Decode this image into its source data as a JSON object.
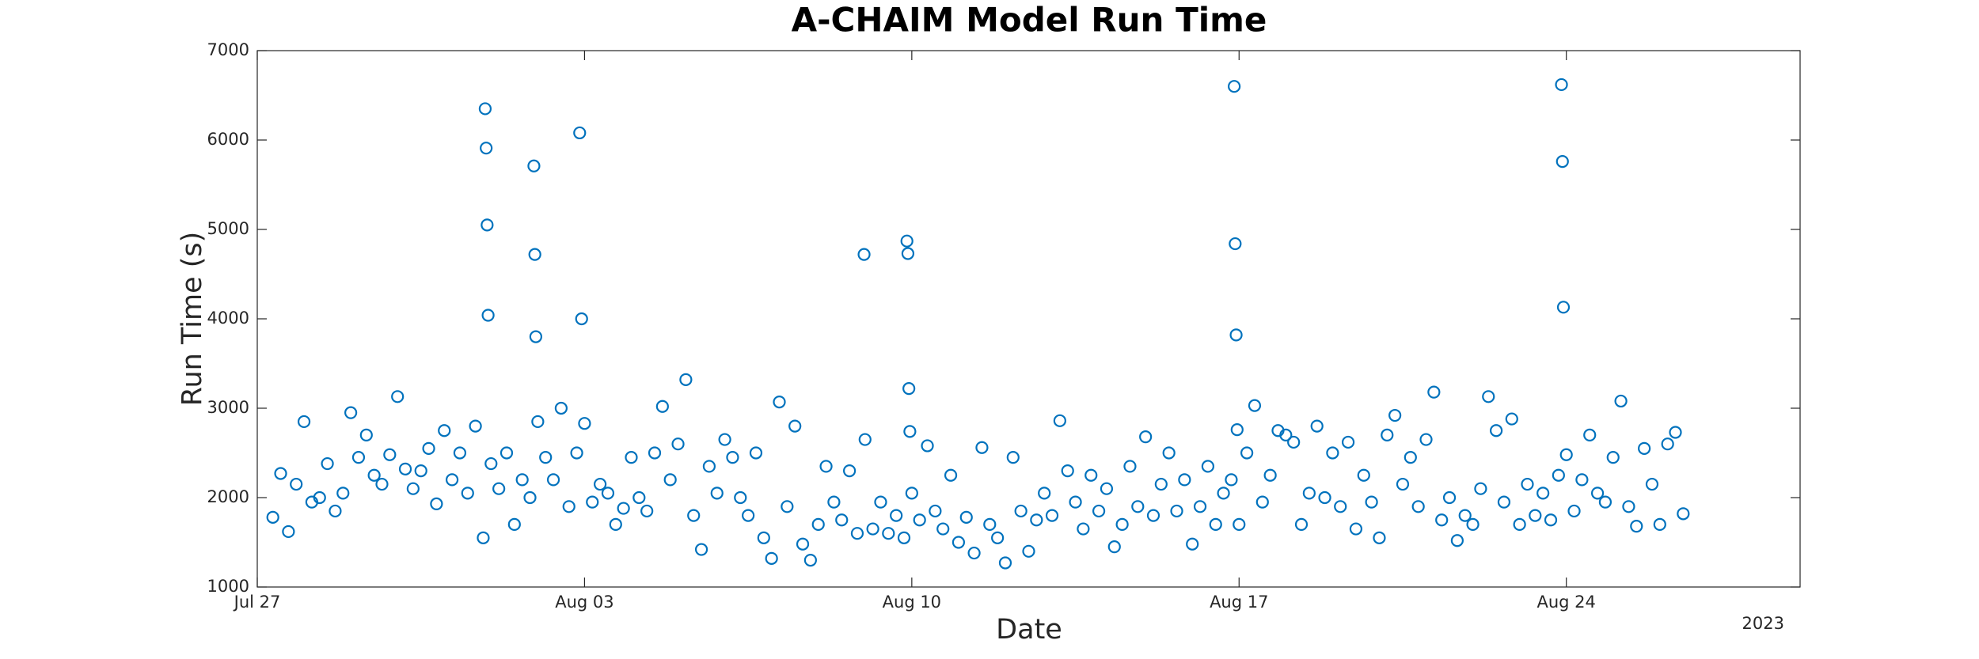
{
  "chart_data": {
    "type": "scatter",
    "title": "A-CHAIM Model Run Time",
    "x_label": "Date",
    "y_label": "Run Time (s)",
    "year_label": "2023",
    "color": "#0072BD",
    "marker": "circle",
    "xlim": [
      "2023-07-27",
      "2023-08-29"
    ],
    "xticks": [
      {
        "value": "2023-07-27",
        "label": "Jul 27"
      },
      {
        "value": "2023-08-03",
        "label": "Aug 03"
      },
      {
        "value": "2023-08-10",
        "label": "Aug 10"
      },
      {
        "value": "2023-08-17",
        "label": "Aug 17"
      },
      {
        "value": "2023-08-24",
        "label": "Aug 24"
      }
    ],
    "ylim": [
      1000,
      7000
    ],
    "yticks": [
      1000,
      2000,
      3000,
      4000,
      5000,
      6000,
      7000
    ],
    "x": [
      "2023-07-27T08:00",
      "2023-07-27T12:00",
      "2023-07-27T16:00",
      "2023-07-27T20:00",
      "2023-07-28T00:00",
      "2023-07-28T04:00",
      "2023-07-28T08:00",
      "2023-07-28T12:00",
      "2023-07-28T16:00",
      "2023-07-28T20:00",
      "2023-07-29T00:00",
      "2023-07-29T04:00",
      "2023-07-29T08:00",
      "2023-07-29T12:00",
      "2023-07-29T16:00",
      "2023-07-29T20:00",
      "2023-07-30T00:00",
      "2023-07-30T04:00",
      "2023-07-30T08:00",
      "2023-07-30T12:00",
      "2023-07-30T16:00",
      "2023-07-30T20:00",
      "2023-07-31T00:00",
      "2023-07-31T04:00",
      "2023-07-31T08:00",
      "2023-07-31T12:00",
      "2023-07-31T16:00",
      "2023-07-31T20:00",
      "2023-07-31T21:00",
      "2023-07-31T21:30",
      "2023-07-31T22:00",
      "2023-07-31T22:30",
      "2023-08-01T00:00",
      "2023-08-01T04:00",
      "2023-08-01T08:00",
      "2023-08-01T12:00",
      "2023-08-01T16:00",
      "2023-08-01T20:00",
      "2023-08-01T22:00",
      "2023-08-01T22:30",
      "2023-08-01T23:00",
      "2023-08-02T00:00",
      "2023-08-02T04:00",
      "2023-08-02T08:00",
      "2023-08-02T12:00",
      "2023-08-02T16:00",
      "2023-08-02T20:00",
      "2023-08-02T21:30",
      "2023-08-02T22:30",
      "2023-08-03T00:00",
      "2023-08-03T04:00",
      "2023-08-03T08:00",
      "2023-08-03T12:00",
      "2023-08-03T16:00",
      "2023-08-03T20:00",
      "2023-08-04T00:00",
      "2023-08-04T04:00",
      "2023-08-04T08:00",
      "2023-08-04T12:00",
      "2023-08-04T16:00",
      "2023-08-04T20:00",
      "2023-08-05T00:00",
      "2023-08-05T04:00",
      "2023-08-05T08:00",
      "2023-08-05T12:00",
      "2023-08-05T16:00",
      "2023-08-05T20:00",
      "2023-08-06T00:00",
      "2023-08-06T04:00",
      "2023-08-06T08:00",
      "2023-08-06T12:00",
      "2023-08-06T16:00",
      "2023-08-06T20:00",
      "2023-08-07T00:00",
      "2023-08-07T04:00",
      "2023-08-07T08:00",
      "2023-08-07T12:00",
      "2023-08-07T16:00",
      "2023-08-07T20:00",
      "2023-08-08T00:00",
      "2023-08-08T04:00",
      "2023-08-08T08:00",
      "2023-08-08T12:00",
      "2023-08-08T16:00",
      "2023-08-08T20:00",
      "2023-08-08T23:30",
      "2023-08-09T00:00",
      "2023-08-09T04:00",
      "2023-08-09T08:00",
      "2023-08-09T12:00",
      "2023-08-09T16:00",
      "2023-08-09T20:00",
      "2023-08-09T21:30",
      "2023-08-09T22:00",
      "2023-08-09T22:30",
      "2023-08-09T23:00",
      "2023-08-10T00:00",
      "2023-08-10T04:00",
      "2023-08-10T08:00",
      "2023-08-10T12:00",
      "2023-08-10T16:00",
      "2023-08-10T20:00",
      "2023-08-11T00:00",
      "2023-08-11T04:00",
      "2023-08-11T08:00",
      "2023-08-11T12:00",
      "2023-08-11T16:00",
      "2023-08-11T20:00",
      "2023-08-12T00:00",
      "2023-08-12T04:00",
      "2023-08-12T08:00",
      "2023-08-12T12:00",
      "2023-08-12T16:00",
      "2023-08-12T20:00",
      "2023-08-13T00:00",
      "2023-08-13T04:00",
      "2023-08-13T08:00",
      "2023-08-13T12:00",
      "2023-08-13T16:00",
      "2023-08-13T20:00",
      "2023-08-14T00:00",
      "2023-08-14T04:00",
      "2023-08-14T08:00",
      "2023-08-14T12:00",
      "2023-08-14T16:00",
      "2023-08-14T20:00",
      "2023-08-15T00:00",
      "2023-08-15T04:00",
      "2023-08-15T08:00",
      "2023-08-15T12:00",
      "2023-08-15T16:00",
      "2023-08-15T20:00",
      "2023-08-16T00:00",
      "2023-08-16T04:00",
      "2023-08-16T08:00",
      "2023-08-16T12:00",
      "2023-08-16T16:00",
      "2023-08-16T20:00",
      "2023-08-16T21:30",
      "2023-08-16T22:00",
      "2023-08-16T22:30",
      "2023-08-16T23:00",
      "2023-08-17T00:00",
      "2023-08-17T04:00",
      "2023-08-17T08:00",
      "2023-08-17T12:00",
      "2023-08-17T16:00",
      "2023-08-17T20:00",
      "2023-08-18T00:00",
      "2023-08-18T04:00",
      "2023-08-18T08:00",
      "2023-08-18T12:00",
      "2023-08-18T16:00",
      "2023-08-18T20:00",
      "2023-08-19T00:00",
      "2023-08-19T04:00",
      "2023-08-19T08:00",
      "2023-08-19T12:00",
      "2023-08-19T16:00",
      "2023-08-19T20:00",
      "2023-08-20T00:00",
      "2023-08-20T04:00",
      "2023-08-20T08:00",
      "2023-08-20T12:00",
      "2023-08-20T16:00",
      "2023-08-20T20:00",
      "2023-08-21T00:00",
      "2023-08-21T04:00",
      "2023-08-21T08:00",
      "2023-08-21T12:00",
      "2023-08-21T16:00",
      "2023-08-21T20:00",
      "2023-08-22T00:00",
      "2023-08-22T04:00",
      "2023-08-22T08:00",
      "2023-08-22T12:00",
      "2023-08-22T16:00",
      "2023-08-22T20:00",
      "2023-08-23T00:00",
      "2023-08-23T04:00",
      "2023-08-23T08:00",
      "2023-08-23T12:00",
      "2023-08-23T16:00",
      "2023-08-23T20:00",
      "2023-08-23T21:30",
      "2023-08-23T22:00",
      "2023-08-23T22:30",
      "2023-08-24T00:00",
      "2023-08-24T04:00",
      "2023-08-24T08:00",
      "2023-08-24T12:00",
      "2023-08-24T16:00",
      "2023-08-24T20:00",
      "2023-08-25T00:00",
      "2023-08-25T04:00",
      "2023-08-25T08:00",
      "2023-08-25T12:00",
      "2023-08-25T16:00",
      "2023-08-25T20:00",
      "2023-08-26T00:00",
      "2023-08-26T04:00",
      "2023-08-26T08:00",
      "2023-08-26T12:00"
    ],
    "values": [
      1780,
      2270,
      1620,
      2150,
      2850,
      1950,
      2000,
      2380,
      1850,
      2050,
      2950,
      2450,
      2700,
      2250,
      2150,
      2480,
      3130,
      2320,
      2100,
      2300,
      2550,
      1930,
      2750,
      2200,
      2500,
      2050,
      2800,
      1550,
      6350,
      5910,
      5050,
      4040,
      2380,
      2100,
      2500,
      1700,
      2200,
      2000,
      5710,
      4720,
      3800,
      2850,
      2450,
      2200,
      3000,
      1900,
      2500,
      6080,
      4000,
      2830,
      1950,
      2150,
      2050,
      1700,
      1880,
      2450,
      2000,
      1850,
      2500,
      3020,
      2200,
      2600,
      3320,
      1800,
      1420,
      2350,
      2050,
      2650,
      2450,
      2000,
      1800,
      2500,
      1550,
      1320,
      3070,
      1900,
      2800,
      1480,
      1300,
      1700,
      2350,
      1950,
      1750,
      2300,
      1600,
      4720,
      2650,
      1650,
      1950,
      1600,
      1800,
      1550,
      4870,
      4730,
      3220,
      2740,
      2050,
      1750,
      2580,
      1850,
      1650,
      2250,
      1500,
      1780,
      1380,
      2560,
      1700,
      1550,
      1270,
      2450,
      1850,
      1400,
      1750,
      2050,
      1800,
      2860,
      2300,
      1950,
      1650,
      2250,
      1850,
      2100,
      1450,
      1700,
      2350,
      1900,
      2680,
      1800,
      2150,
      2500,
      1850,
      2200,
      1480,
      1900,
      2350,
      1700,
      2050,
      2200,
      6600,
      4840,
      3820,
      2760,
      1700,
      2500,
      3030,
      1950,
      2250,
      2750,
      2700,
      2620,
      1700,
      2050,
      2800,
      2000,
      2500,
      1900,
      2620,
      1650,
      2250,
      1950,
      1550,
      2700,
      2920,
      2150,
      2450,
      1900,
      2650,
      3180,
      1750,
      2000,
      1520,
      1800,
      1700,
      2100,
      3130,
      2750,
      1950,
      2880,
      1700,
      2150,
      1800,
      2050,
      1750,
      2250,
      6620,
      5760,
      4130,
      2480,
      1850,
      2200,
      2700,
      2050,
      1950,
      2450,
      3080,
      1900,
      1680,
      2550,
      2150,
      1700,
      2600,
      2730,
      1820
    ]
  }
}
